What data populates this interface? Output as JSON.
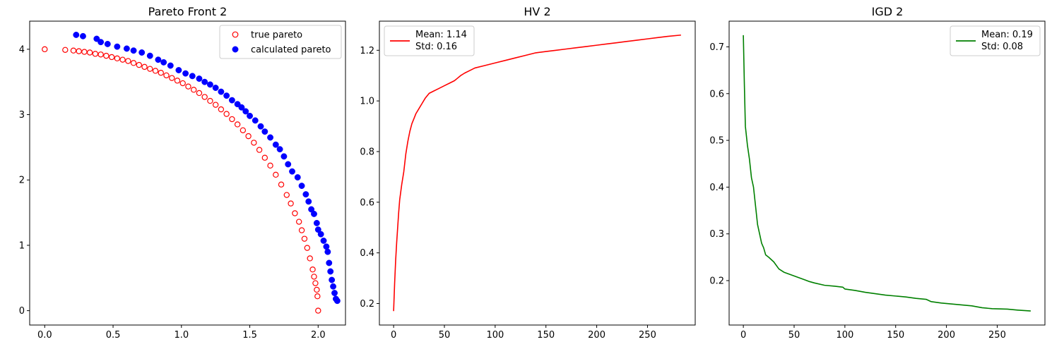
{
  "figure": {
    "background": "#ffffff"
  },
  "chart_data": [
    {
      "type": "scatter",
      "title": "Pareto Front 2",
      "xlabel": "",
      "ylabel": "",
      "xlim": [
        -0.11,
        2.2
      ],
      "ylim": [
        -0.22,
        4.43
      ],
      "xticks": [
        0.0,
        0.5,
        1.0,
        1.5,
        2.0
      ],
      "xtick_labels": [
        "0.0",
        "0.5",
        "1.0",
        "1.5",
        "2.0"
      ],
      "yticks": [
        0,
        1,
        2,
        3,
        4
      ],
      "ytick_labels": [
        "0",
        "1",
        "2",
        "3",
        "4"
      ],
      "grid": false,
      "legend": {
        "position": "top-right",
        "entries": [
          "true pareto",
          "calculated pareto"
        ]
      },
      "series": [
        {
          "name": "true pareto",
          "marker": "hollow-circle",
          "color": "#ff0000",
          "points": [
            [
              0.0,
              4.0
            ],
            [
              0.15,
              3.99
            ],
            [
              0.21,
              3.98
            ],
            [
              0.25,
              3.97
            ],
            [
              0.29,
              3.96
            ],
            [
              0.33,
              3.95
            ],
            [
              0.37,
              3.93
            ],
            [
              0.41,
              3.92
            ],
            [
              0.45,
              3.9
            ],
            [
              0.49,
              3.88
            ],
            [
              0.53,
              3.86
            ],
            [
              0.57,
              3.84
            ],
            [
              0.61,
              3.82
            ],
            [
              0.65,
              3.79
            ],
            [
              0.69,
              3.76
            ],
            [
              0.73,
              3.73
            ],
            [
              0.77,
              3.7
            ],
            [
              0.81,
              3.67
            ],
            [
              0.85,
              3.64
            ],
            [
              0.89,
              3.6
            ],
            [
              0.93,
              3.56
            ],
            [
              0.97,
              3.52
            ],
            [
              1.01,
              3.48
            ],
            [
              1.05,
              3.43
            ],
            [
              1.09,
              3.38
            ],
            [
              1.13,
              3.33
            ],
            [
              1.17,
              3.27
            ],
            [
              1.21,
              3.21
            ],
            [
              1.25,
              3.15
            ],
            [
              1.29,
              3.08
            ],
            [
              1.33,
              3.01
            ],
            [
              1.37,
              2.93
            ],
            [
              1.41,
              2.85
            ],
            [
              1.45,
              2.76
            ],
            [
              1.49,
              2.67
            ],
            [
              1.53,
              2.57
            ],
            [
              1.57,
              2.46
            ],
            [
              1.61,
              2.34
            ],
            [
              1.65,
              2.22
            ],
            [
              1.69,
              2.08
            ],
            [
              1.73,
              1.93
            ],
            [
              1.77,
              1.77
            ],
            [
              1.8,
              1.64
            ],
            [
              1.83,
              1.49
            ],
            [
              1.86,
              1.36
            ],
            [
              1.88,
              1.23
            ],
            [
              1.9,
              1.1
            ],
            [
              1.92,
              0.96
            ],
            [
              1.94,
              0.8
            ],
            [
              1.96,
              0.63
            ],
            [
              1.97,
              0.52
            ],
            [
              1.98,
              0.42
            ],
            [
              1.99,
              0.32
            ],
            [
              1.995,
              0.22
            ],
            [
              2.0,
              0.0
            ]
          ]
        },
        {
          "name": "calculated pareto",
          "marker": "filled-circle",
          "color": "#0000ff",
          "points": [
            [
              0.23,
              4.22
            ],
            [
              0.28,
              4.2
            ],
            [
              0.38,
              4.16
            ],
            [
              0.41,
              4.11
            ],
            [
              0.46,
              4.08
            ],
            [
              0.53,
              4.04
            ],
            [
              0.6,
              4.01
            ],
            [
              0.65,
              3.98
            ],
            [
              0.71,
              3.95
            ],
            [
              0.77,
              3.9
            ],
            [
              0.83,
              3.84
            ],
            [
              0.87,
              3.8
            ],
            [
              0.92,
              3.75
            ],
            [
              0.98,
              3.68
            ],
            [
              1.03,
              3.63
            ],
            [
              1.08,
              3.59
            ],
            [
              1.13,
              3.55
            ],
            [
              1.17,
              3.5
            ],
            [
              1.21,
              3.46
            ],
            [
              1.25,
              3.41
            ],
            [
              1.29,
              3.35
            ],
            [
              1.33,
              3.29
            ],
            [
              1.37,
              3.22
            ],
            [
              1.41,
              3.16
            ],
            [
              1.44,
              3.11
            ],
            [
              1.47,
              3.05
            ],
            [
              1.5,
              2.98
            ],
            [
              1.54,
              2.91
            ],
            [
              1.58,
              2.82
            ],
            [
              1.61,
              2.74
            ],
            [
              1.65,
              2.65
            ],
            [
              1.69,
              2.54
            ],
            [
              1.72,
              2.47
            ],
            [
              1.75,
              2.36
            ],
            [
              1.78,
              2.24
            ],
            [
              1.81,
              2.13
            ],
            [
              1.85,
              2.04
            ],
            [
              1.88,
              1.91
            ],
            [
              1.91,
              1.78
            ],
            [
              1.93,
              1.67
            ],
            [
              1.95,
              1.55
            ],
            [
              1.97,
              1.48
            ],
            [
              1.99,
              1.34
            ],
            [
              2.0,
              1.24
            ],
            [
              2.02,
              1.17
            ],
            [
              2.04,
              1.07
            ],
            [
              2.06,
              0.98
            ],
            [
              2.07,
              0.9
            ],
            [
              2.08,
              0.73
            ],
            [
              2.09,
              0.6
            ],
            [
              2.1,
              0.47
            ],
            [
              2.11,
              0.37
            ],
            [
              2.12,
              0.27
            ],
            [
              2.13,
              0.18
            ],
            [
              2.14,
              0.15
            ]
          ]
        }
      ]
    },
    {
      "type": "line",
      "title": "HV 2",
      "xlabel": "",
      "ylabel": "",
      "xlim": [
        -14,
        297
      ],
      "ylim": [
        0.115,
        1.315
      ],
      "xticks": [
        0,
        50,
        100,
        150,
        200,
        250
      ],
      "xtick_labels": [
        "0",
        "50",
        "100",
        "150",
        "200",
        "250"
      ],
      "yticks": [
        0.2,
        0.4,
        0.6,
        0.8,
        1.0,
        1.2
      ],
      "ytick_labels": [
        "0.2",
        "0.4",
        "0.6",
        "0.8",
        "1.0",
        "1.2"
      ],
      "grid": false,
      "legend": {
        "position": "top-left",
        "lines": [
          "Mean: 1.14",
          "Std: 0.16"
        ]
      },
      "series": [
        {
          "name": "Mean: 1.14\nStd: 0.16",
          "color": "#ff0000",
          "points": [
            [
              0,
              0.17
            ],
            [
              1,
              0.28
            ],
            [
              2,
              0.37
            ],
            [
              3,
              0.44
            ],
            [
              4,
              0.5
            ],
            [
              5,
              0.56
            ],
            [
              6,
              0.61
            ],
            [
              8,
              0.67
            ],
            [
              10,
              0.72
            ],
            [
              12,
              0.79
            ],
            [
              14,
              0.84
            ],
            [
              16,
              0.88
            ],
            [
              18,
              0.91
            ],
            [
              20,
              0.93
            ],
            [
              22,
              0.95
            ],
            [
              25,
              0.97
            ],
            [
              28,
              0.99
            ],
            [
              31,
              1.01
            ],
            [
              35,
              1.03
            ],
            [
              40,
              1.04
            ],
            [
              45,
              1.05
            ],
            [
              50,
              1.06
            ],
            [
              55,
              1.07
            ],
            [
              60,
              1.08
            ],
            [
              63,
              1.09
            ],
            [
              66,
              1.1
            ],
            [
              70,
              1.11
            ],
            [
              75,
              1.12
            ],
            [
              80,
              1.13
            ],
            [
              90,
              1.14
            ],
            [
              100,
              1.15
            ],
            [
              110,
              1.16
            ],
            [
              120,
              1.17
            ],
            [
              130,
              1.18
            ],
            [
              140,
              1.19
            ],
            [
              150,
              1.195
            ],
            [
              160,
              1.2
            ],
            [
              170,
              1.205
            ],
            [
              180,
              1.21
            ],
            [
              190,
              1.215
            ],
            [
              200,
              1.22
            ],
            [
              210,
              1.225
            ],
            [
              220,
              1.23
            ],
            [
              230,
              1.235
            ],
            [
              240,
              1.24
            ],
            [
              250,
              1.245
            ],
            [
              260,
              1.25
            ],
            [
              270,
              1.255
            ],
            [
              283,
              1.26
            ]
          ]
        }
      ]
    },
    {
      "type": "line",
      "title": "IGD 2",
      "xlabel": "",
      "ylabel": "",
      "xlim": [
        -14,
        297
      ],
      "ylim": [
        0.105,
        0.755
      ],
      "xticks": [
        0,
        50,
        100,
        150,
        200,
        250
      ],
      "xtick_labels": [
        "0",
        "50",
        "100",
        "150",
        "200",
        "250"
      ],
      "yticks": [
        0.2,
        0.3,
        0.4,
        0.5,
        0.6,
        0.7
      ],
      "ytick_labels": [
        "0.2",
        "0.3",
        "0.4",
        "0.5",
        "0.6",
        "0.7"
      ],
      "grid": false,
      "legend": {
        "position": "top-right",
        "lines": [
          "Mean: 0.19",
          "Std: 0.08"
        ]
      },
      "series": [
        {
          "name": "Mean: 0.19\nStd: 0.08",
          "color": "#008000",
          "points": [
            [
              0,
              0.725
            ],
            [
              1,
              0.62
            ],
            [
              2,
              0.53
            ],
            [
              4,
              0.49
            ],
            [
              6,
              0.46
            ],
            [
              8,
              0.42
            ],
            [
              10,
              0.4
            ],
            [
              12,
              0.36
            ],
            [
              14,
              0.32
            ],
            [
              16,
              0.3
            ],
            [
              18,
              0.28
            ],
            [
              20,
              0.27
            ],
            [
              22,
              0.255
            ],
            [
              25,
              0.25
            ],
            [
              30,
              0.24
            ],
            [
              35,
              0.225
            ],
            [
              40,
              0.218
            ],
            [
              45,
              0.214
            ],
            [
              50,
              0.21
            ],
            [
              55,
              0.206
            ],
            [
              60,
              0.202
            ],
            [
              65,
              0.198
            ],
            [
              70,
              0.195
            ],
            [
              80,
              0.19
            ],
            [
              90,
              0.188
            ],
            [
              98,
              0.186
            ],
            [
              100,
              0.182
            ],
            [
              110,
              0.179
            ],
            [
              120,
              0.175
            ],
            [
              130,
              0.172
            ],
            [
              140,
              0.169
            ],
            [
              150,
              0.167
            ],
            [
              160,
              0.165
            ],
            [
              170,
              0.162
            ],
            [
              180,
              0.16
            ],
            [
              185,
              0.155
            ],
            [
              195,
              0.152
            ],
            [
              210,
              0.149
            ],
            [
              225,
              0.146
            ],
            [
              235,
              0.142
            ],
            [
              245,
              0.14
            ],
            [
              260,
              0.139
            ],
            [
              270,
              0.137
            ],
            [
              283,
              0.135
            ]
          ]
        }
      ]
    }
  ]
}
